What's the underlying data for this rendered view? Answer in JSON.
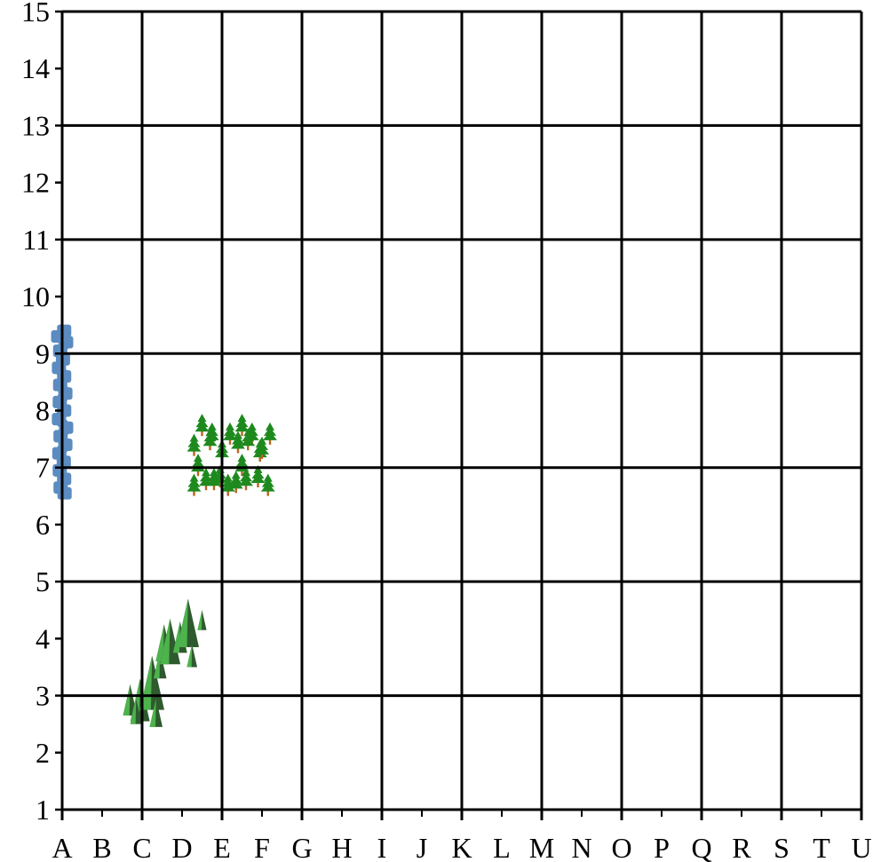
{
  "map": {
    "x_labels": [
      "A",
      "B",
      "C",
      "D",
      "E",
      "F",
      "G",
      "H",
      "I",
      "J",
      "K",
      "L",
      "M",
      "N",
      "O",
      "P",
      "Q",
      "R",
      "S",
      "T",
      "U"
    ],
    "y_labels": [
      "1",
      "2",
      "3",
      "4",
      "5",
      "6",
      "7",
      "8",
      "9",
      "10",
      "11",
      "12",
      "13",
      "14",
      "15"
    ],
    "x_major_every": 2,
    "y_range": [
      1,
      15
    ],
    "colors": {
      "grid": "#000000",
      "background": "#ffffff",
      "water": "#5b8bc0",
      "forest_light": "#4db34d",
      "forest_dark": "#2e5a2e",
      "pine": "#1e8a1e",
      "pine_trunk": "#b5651d"
    },
    "features": [
      {
        "type": "water",
        "icon": "river-icon",
        "points": [
          [
            0.05,
            9.4
          ],
          [
            -0.1,
            9.3
          ],
          [
            0.1,
            9.2
          ],
          [
            -0.05,
            9.05
          ],
          [
            0.02,
            8.9
          ],
          [
            -0.08,
            8.75
          ],
          [
            0.05,
            8.6
          ],
          [
            -0.05,
            8.45
          ],
          [
            0.08,
            8.3
          ],
          [
            -0.06,
            8.15
          ],
          [
            0.05,
            8.0
          ],
          [
            -0.08,
            7.85
          ],
          [
            0.1,
            7.7
          ],
          [
            -0.04,
            7.55
          ],
          [
            0.08,
            7.4
          ],
          [
            -0.07,
            7.25
          ],
          [
            0.04,
            7.1
          ],
          [
            -0.06,
            6.95
          ],
          [
            0.05,
            6.8
          ],
          [
            -0.04,
            6.65
          ],
          [
            0.06,
            6.55
          ]
        ]
      },
      {
        "type": "forest-mountain",
        "icon": "forest-mountain-icon",
        "trees": [
          {
            "x": 1.7,
            "y": 2.65,
            "h": 0.55
          },
          {
            "x": 1.95,
            "y": 2.55,
            "h": 0.75
          },
          {
            "x": 1.85,
            "y": 2.5,
            "h": 0.45
          },
          {
            "x": 2.25,
            "y": 2.75,
            "h": 0.95
          },
          {
            "x": 2.35,
            "y": 2.45,
            "h": 0.5
          },
          {
            "x": 2.45,
            "y": 3.3,
            "h": 0.5
          },
          {
            "x": 2.55,
            "y": 3.6,
            "h": 0.65
          },
          {
            "x": 2.7,
            "y": 3.55,
            "h": 0.8
          },
          {
            "x": 2.95,
            "y": 3.75,
            "h": 0.55
          },
          {
            "x": 3.15,
            "y": 3.85,
            "h": 0.85
          },
          {
            "x": 3.25,
            "y": 3.5,
            "h": 0.4
          },
          {
            "x": 3.5,
            "y": 4.15,
            "h": 0.35
          }
        ]
      },
      {
        "type": "pine-forest",
        "icon": "pine-tree-icon",
        "trees": [
          {
            "x": 3.5,
            "y": 7.6
          },
          {
            "x": 3.75,
            "y": 7.45
          },
          {
            "x": 4.2,
            "y": 7.45
          },
          {
            "x": 4.5,
            "y": 7.6
          },
          {
            "x": 4.75,
            "y": 7.45
          },
          {
            "x": 5.2,
            "y": 7.45
          },
          {
            "x": 3.3,
            "y": 7.25
          },
          {
            "x": 3.7,
            "y": 7.35
          },
          {
            "x": 4.0,
            "y": 7.15
          },
          {
            "x": 4.4,
            "y": 7.3
          },
          {
            "x": 4.65,
            "y": 7.35
          },
          {
            "x": 4.95,
            "y": 7.15
          },
          {
            "x": 3.4,
            "y": 6.9
          },
          {
            "x": 3.6,
            "y": 6.65
          },
          {
            "x": 3.95,
            "y": 6.7
          },
          {
            "x": 4.15,
            "y": 6.55
          },
          {
            "x": 4.5,
            "y": 6.9
          },
          {
            "x": 4.6,
            "y": 6.65
          },
          {
            "x": 4.9,
            "y": 6.7
          },
          {
            "x": 3.3,
            "y": 6.55
          },
          {
            "x": 3.8,
            "y": 6.65
          },
          {
            "x": 4.35,
            "y": 6.6
          },
          {
            "x": 5.15,
            "y": 6.55
          },
          {
            "x": 5.0,
            "y": 7.2
          }
        ]
      }
    ]
  }
}
